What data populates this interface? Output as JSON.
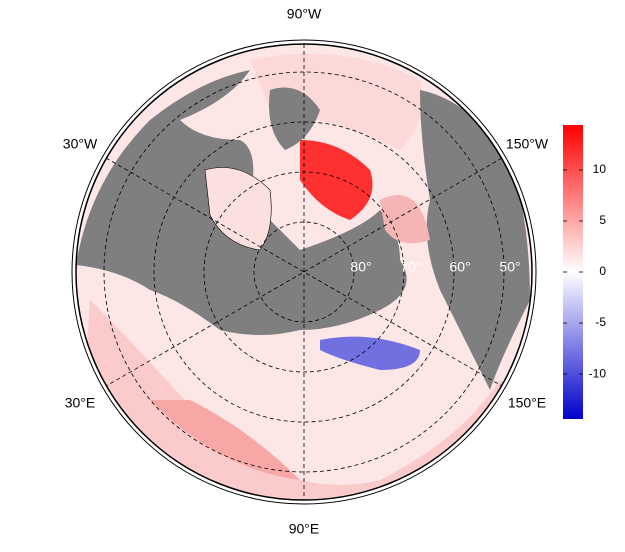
{
  "map": {
    "longitude_labels": [
      "90°W",
      "30°W",
      "150°W",
      "30°E",
      "150°E",
      "90°E"
    ],
    "latitude_labels": [
      "80°",
      "70°",
      "60°",
      "50°"
    ]
  },
  "colorbar": {
    "lim": [
      -14.4,
      14.4
    ],
    "ticks": [
      -10,
      -5,
      0,
      5,
      10
    ],
    "colors": [
      "#0000cc",
      "#ffffff",
      "#ff0000"
    ]
  }
}
